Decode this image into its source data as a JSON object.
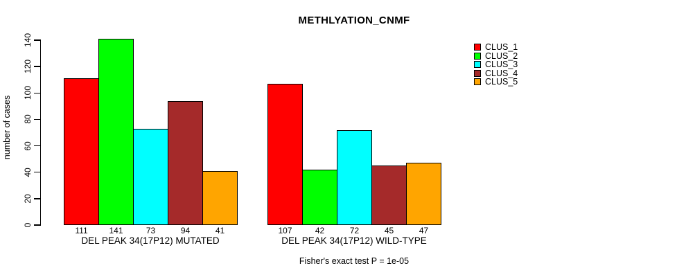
{
  "chart_data": {
    "type": "bar",
    "title": "METHLYATION_CNMF",
    "xlabel": "",
    "ylabel": "number of cases",
    "ylim": [
      0,
      140
    ],
    "yticks": [
      0,
      20,
      40,
      60,
      80,
      100,
      120,
      140
    ],
    "grid": false,
    "legend_position": "top-right",
    "series": [
      {
        "name": "CLUS_1",
        "color": "#FF0000"
      },
      {
        "name": "CLUS_2",
        "color": "#00FF00"
      },
      {
        "name": "CLUS_3",
        "color": "#00FFFF"
      },
      {
        "name": "CLUS_4",
        "color": "#A52A2A"
      },
      {
        "name": "CLUS_5",
        "color": "#FFA500"
      }
    ],
    "groups": [
      {
        "label": "DEL PEAK 34(17P12) MUTATED",
        "values": [
          111,
          141,
          73,
          94,
          41
        ]
      },
      {
        "label": "DEL PEAK 34(17P12) WILD-TYPE",
        "values": [
          107,
          42,
          72,
          45,
          47
        ]
      }
    ],
    "caption": "Fisher's exact test P = 1e-05"
  }
}
